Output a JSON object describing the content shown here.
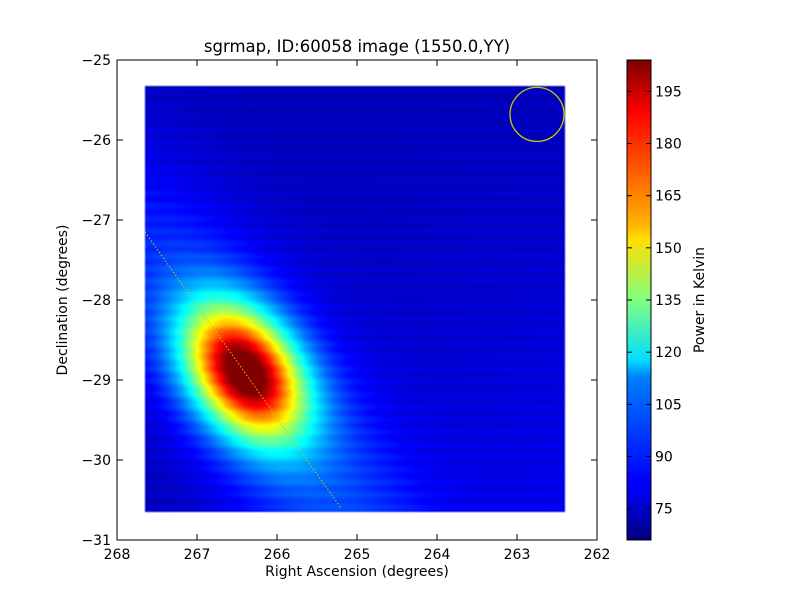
{
  "chart_data": {
    "type": "heatmap",
    "title": "sgrmap, ID:60058 image (1550.0,YY)",
    "xlabel": "Right Ascension (degrees)",
    "ylabel": "Declination (degrees)",
    "colorbar_label": "Power in Kelvin",
    "x_axis_inverted": true,
    "xlim": [
      268,
      262
    ],
    "ylim": [
      -31,
      -25
    ],
    "x_ticks": [
      "268",
      "267",
      "266",
      "265",
      "264",
      "263",
      "262"
    ],
    "y_ticks": [
      "−25",
      "−26",
      "−27",
      "−28",
      "−29",
      "−30",
      "−31"
    ],
    "colorbar_ticks": [
      "195",
      "180",
      "165",
      "150",
      "135",
      "120",
      "105",
      "90",
      "75"
    ],
    "colorbar_range": [
      66,
      204
    ],
    "colormap": "jet",
    "map_extent": {
      "ra": [
        267.65,
        262.4
      ],
      "dec": [
        -30.65,
        -25.33
      ]
    },
    "background_level_k": 80,
    "sources": [
      {
        "ra": 266.4,
        "dec": -28.9,
        "peak_k": 200
      }
    ],
    "galactic_plane_line": {
      "ra": [
        267.65,
        265.2
      ],
      "dec": [
        -27.15,
        -30.6
      ],
      "color": "#c8c800"
    },
    "beam_circle": {
      "ra": 262.75,
      "dec": -25.68,
      "color": "#c8c800"
    },
    "grid": false,
    "legend": "none"
  }
}
